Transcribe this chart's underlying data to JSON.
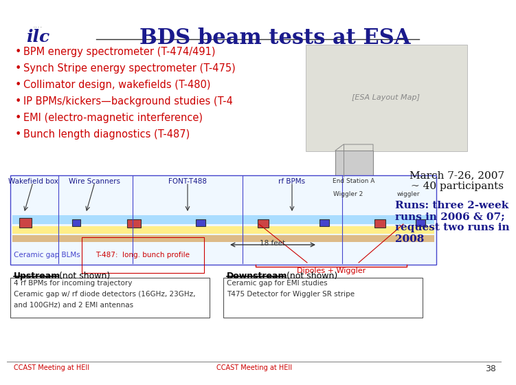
{
  "title": "BDS beam tests at ESA",
  "title_color": "#1a1a8c",
  "title_fontsize": 22,
  "bg_color": "#ffffff",
  "bullet_items": [
    "BPM energy spectrometer (T-474/491)",
    "Synch Stripe energy spectrometer (T-475)",
    "Collimator design, wakefields (T-480)",
    "IP BPMs/kickers—background studies (T-4",
    "EMI (electro-magnetic interference)",
    "Bunch length diagnostics (T-487)"
  ],
  "bullet_color": "#cc0000",
  "bullet_fontsize": 10.5,
  "date_text": "March 7-26, 2007\n~ 40 participants",
  "runs_text": "Runs: three 2-week\nruns in 2006 & 07;\nrequest two runs in\n2008",
  "runs_color": "#1a1a8c",
  "runs_fontsize": 11,
  "labels_top": [
    "Wakefield box",
    "Wire Scanners",
    "FONT-T488",
    "rf BPMs"
  ],
  "labels_top_color": "#1a1a8c",
  "bottom_labels": [
    "Ceramic gap BLMs",
    "T-487:  long. bunch profile",
    "Dipoles + Wiggler"
  ],
  "upstream_header": "Upstream",
  "upstream_subtext": "(not shown)",
  "upstream_bullets": [
    "4 rf BPMs for incoming trajectory",
    "Ceramic gap w/ rf diode detectors (16GHz, 23GHz,",
    "and 100GHz) and 2 EMI antennas"
  ],
  "downstream_header": "Downstream",
  "downstream_subtext": "(not shown)",
  "downstream_bullets": [
    "Ceramic gap for EMI studies",
    "T475 Detector for Wiggler SR stripe"
  ],
  "footer_left": "CCAST Meeting at HEII",
  "page_num": "38",
  "footer_color": "#cc0000"
}
